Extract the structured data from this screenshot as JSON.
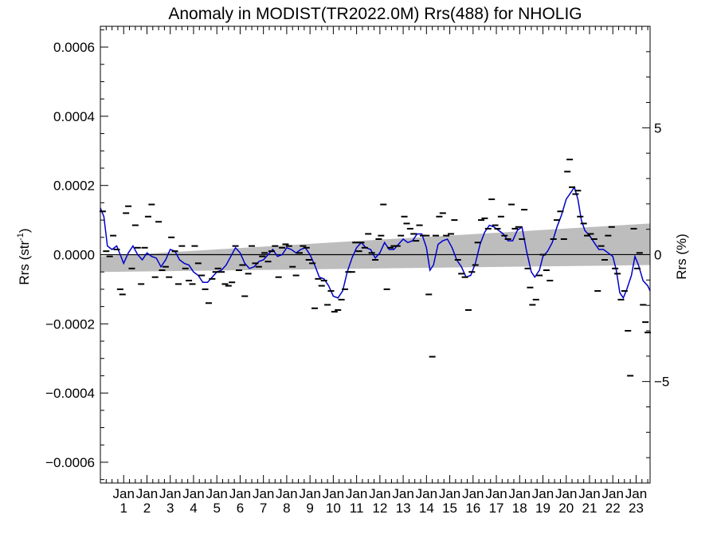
{
  "chart_data": {
    "type": "scatter",
    "title": "Anomaly in MODIST(TR2022.0M) Rrs(488) for NHOLIG",
    "ylabel": {
      "main": "Rrs (str",
      "sup": "-1",
      "close": ")"
    },
    "y2label": "Rrs (%)",
    "xlim": [
      0,
      23.6
    ],
    "ylim": [
      -0.00066,
      0.00066
    ],
    "y2lim": [
      -9.0,
      9.0
    ],
    "x_ticks": [
      {
        "top": "Jan",
        "bottom": "1",
        "x": 1
      },
      {
        "top": "Jan",
        "bottom": "2",
        "x": 2
      },
      {
        "top": "Jan",
        "bottom": "3",
        "x": 3
      },
      {
        "top": "Jan",
        "bottom": "4",
        "x": 4
      },
      {
        "top": "Jan",
        "bottom": "5",
        "x": 5
      },
      {
        "top": "Jan",
        "bottom": "6",
        "x": 6
      },
      {
        "top": "Jan",
        "bottom": "7",
        "x": 7
      },
      {
        "top": "Jan",
        "bottom": "8",
        "x": 8
      },
      {
        "top": "Jan",
        "bottom": "9",
        "x": 9
      },
      {
        "top": "Jan",
        "bottom": "10",
        "x": 10
      },
      {
        "top": "Jan",
        "bottom": "11",
        "x": 11
      },
      {
        "top": "Jan",
        "bottom": "12",
        "x": 12
      },
      {
        "top": "Jan",
        "bottom": "13",
        "x": 13
      },
      {
        "top": "Jan",
        "bottom": "14",
        "x": 14
      },
      {
        "top": "Jan",
        "bottom": "15",
        "x": 15
      },
      {
        "top": "Jan",
        "bottom": "16",
        "x": 16
      },
      {
        "top": "Jan",
        "bottom": "17",
        "x": 17
      },
      {
        "top": "Jan",
        "bottom": "18",
        "x": 18
      },
      {
        "top": "Jan",
        "bottom": "19",
        "x": 19
      },
      {
        "top": "Jan",
        "bottom": "20",
        "x": 20
      },
      {
        "top": "Jan",
        "bottom": "21",
        "x": 21
      },
      {
        "top": "Jan",
        "bottom": "22",
        "x": 22
      },
      {
        "top": "Jan",
        "bottom": "23",
        "x": 23
      }
    ],
    "y_ticks": [
      {
        "v": 0.0006,
        "label": "0.0006"
      },
      {
        "v": 0.0004,
        "label": "0.0004"
      },
      {
        "v": 0.0002,
        "label": "0.0002"
      },
      {
        "v": 0.0,
        "label": "0.0000"
      },
      {
        "v": -0.0002,
        "label": "−0.0002"
      },
      {
        "v": -0.0004,
        "label": "−0.0004"
      },
      {
        "v": -0.0006,
        "label": "−0.0006"
      }
    ],
    "y2_ticks": [
      {
        "v": 5,
        "label": "5"
      },
      {
        "v": 0,
        "label": "0"
      },
      {
        "v": -5,
        "label": "−5"
      }
    ],
    "trend": {
      "start": [
        0,
        -1e-07
      ],
      "end": [
        23.6,
        2e-07
      ]
    },
    "confidence_band": {
      "upper": [
        [
          0,
          -5e-06
        ],
        [
          23.6,
          9e-05
        ]
      ],
      "lower": [
        [
          0,
          -5e-05
        ],
        [
          23.6,
          -3e-05
        ]
      ]
    },
    "colors": {
      "smooth_line": "#0000cc",
      "band": "#bdbdbd",
      "points": "#000000",
      "trend": "#000000"
    },
    "points": [
      [
        0.1,
        0.000125
      ],
      [
        0.25,
        1e-05
      ],
      [
        0.4,
        -5e-06
      ],
      [
        0.55,
        5.5e-05
      ],
      [
        0.7,
        1.5e-05
      ],
      [
        0.85,
        -0.0001
      ],
      [
        0.95,
        -0.000115
      ],
      [
        1.1,
        0.00012
      ],
      [
        1.2,
        0.00014
      ],
      [
        1.35,
        -4e-05
      ],
      [
        1.5,
        8.5e-05
      ],
      [
        1.6,
        2e-05
      ],
      [
        1.75,
        -8.5e-05
      ],
      [
        1.9,
        2e-05
      ],
      [
        2.05,
        0.00011
      ],
      [
        2.2,
        0.000145
      ],
      [
        2.35,
        -6.5e-05
      ],
      [
        2.5,
        9.5e-05
      ],
      [
        2.65,
        -4.5e-05
      ],
      [
        2.8,
        -3.5e-05
      ],
      [
        2.95,
        -6.5e-05
      ],
      [
        3.05,
        5e-05
      ],
      [
        3.2,
        1e-05
      ],
      [
        3.35,
        -8.5e-05
      ],
      [
        3.5,
        2.5e-05
      ],
      [
        3.65,
        -4e-05
      ],
      [
        3.8,
        -7.5e-05
      ],
      [
        3.95,
        -8.5e-05
      ],
      [
        4.05,
        2.5e-05
      ],
      [
        4.2,
        -2.5e-05
      ],
      [
        4.35,
        -6e-05
      ],
      [
        4.5,
        -0.0001
      ],
      [
        4.65,
        -0.00014
      ],
      [
        4.8,
        -7e-05
      ],
      [
        4.95,
        -5e-05
      ],
      [
        5.05,
        -4e-05
      ],
      [
        5.2,
        -5e-05
      ],
      [
        5.35,
        -8.5e-05
      ],
      [
        5.5,
        -9e-05
      ],
      [
        5.65,
        -8e-05
      ],
      [
        5.8,
        2.5e-05
      ],
      [
        5.95,
        -4.5e-05
      ],
      [
        6.1,
        -3e-05
      ],
      [
        6.2,
        -0.00012
      ],
      [
        6.35,
        -5.5e-05
      ],
      [
        6.5,
        2.5e-05
      ],
      [
        6.65,
        -2.5e-05
      ],
      [
        6.8,
        -3.5e-05
      ],
      [
        6.95,
        -5e-06
      ],
      [
        7.05,
        5e-06
      ],
      [
        7.2,
        -2e-05
      ],
      [
        7.35,
        1e-05
      ],
      [
        7.5,
        2.5e-05
      ],
      [
        7.65,
        -6.5e-05
      ],
      [
        7.8,
        2e-05
      ],
      [
        7.95,
        3e-05
      ],
      [
        8.1,
        2.5e-05
      ],
      [
        8.25,
        -3.5e-05
      ],
      [
        8.4,
        -6e-05
      ],
      [
        8.55,
        5e-06
      ],
      [
        8.7,
        2.5e-05
      ],
      [
        8.85,
        2e-05
      ],
      [
        8.95,
        -1.5e-05
      ],
      [
        9.1,
        -2.5e-05
      ],
      [
        9.2,
        -0.000155
      ],
      [
        9.35,
        -7e-05
      ],
      [
        9.5,
        -9e-05
      ],
      [
        9.6,
        -7.5e-05
      ],
      [
        9.75,
        -0.000145
      ],
      [
        9.9,
        -0.000105
      ],
      [
        10.05,
        -0.000165
      ],
      [
        10.2,
        -0.00016
      ],
      [
        10.35,
        -0.00013
      ],
      [
        10.5,
        -0.0001
      ],
      [
        10.65,
        -5e-05
      ],
      [
        10.8,
        -5e-05
      ],
      [
        10.95,
        3.5e-05
      ],
      [
        11.1,
        1e-05
      ],
      [
        11.2,
        3.5e-05
      ],
      [
        11.35,
        2e-05
      ],
      [
        11.5,
        6e-05
      ],
      [
        11.65,
        5e-06
      ],
      [
        11.8,
        -1.5e-05
      ],
      [
        11.95,
        4.5e-05
      ],
      [
        12.05,
        5.5e-05
      ],
      [
        12.15,
        0.000145
      ],
      [
        12.3,
        -0.0001
      ],
      [
        12.45,
        2e-05
      ],
      [
        12.6,
        2.5e-05
      ],
      [
        12.75,
        2.5e-05
      ],
      [
        12.9,
        5.5e-05
      ],
      [
        13.05,
        0.00011
      ],
      [
        13.15,
        9e-05
      ],
      [
        13.3,
        7.5e-05
      ],
      [
        13.45,
        6e-05
      ],
      [
        13.55,
        4e-05
      ],
      [
        13.7,
        8.5e-05
      ],
      [
        13.85,
        5.5e-05
      ],
      [
        14.0,
        5.5e-05
      ],
      [
        14.1,
        -0.000115
      ],
      [
        14.25,
        -0.000295
      ],
      [
        14.4,
        5.5e-05
      ],
      [
        14.55,
        0.00011
      ],
      [
        14.7,
        0.00012
      ],
      [
        14.85,
        5.5e-05
      ],
      [
        15.05,
        6e-05
      ],
      [
        15.2,
        0.0001
      ],
      [
        15.35,
        -1.5e-05
      ],
      [
        15.5,
        -5.5e-05
      ],
      [
        15.65,
        -6.5e-05
      ],
      [
        15.8,
        -0.00016
      ],
      [
        15.95,
        -5e-05
      ],
      [
        16.1,
        -3e-05
      ],
      [
        16.2,
        3.5e-05
      ],
      [
        16.35,
        0.0001
      ],
      [
        16.5,
        0.000105
      ],
      [
        16.65,
        7.5e-05
      ],
      [
        16.8,
        0.00016
      ],
      [
        16.95,
        8.5e-05
      ],
      [
        17.05,
        7.5e-05
      ],
      [
        17.2,
        0.00011
      ],
      [
        17.35,
        5.5e-05
      ],
      [
        17.5,
        4.5e-05
      ],
      [
        17.65,
        0.000145
      ],
      [
        17.8,
        7.5e-05
      ],
      [
        17.95,
        8e-05
      ],
      [
        18.1,
        4.5e-05
      ],
      [
        18.2,
        0.00013
      ],
      [
        18.35,
        -4e-05
      ],
      [
        18.45,
        -9.5e-05
      ],
      [
        18.55,
        -0.000145
      ],
      [
        18.7,
        -0.00013
      ],
      [
        18.85,
        -6e-05
      ],
      [
        19.0,
        0.0
      ],
      [
        19.15,
        -4.5e-05
      ],
      [
        19.3,
        -7.5e-05
      ],
      [
        19.45,
        4.5e-05
      ],
      [
        19.6,
        0.0001
      ],
      [
        19.75,
        0.000125
      ],
      [
        19.9,
        4.5e-05
      ],
      [
        20.05,
        0.00024
      ],
      [
        20.15,
        0.000275
      ],
      [
        20.25,
        0.000195
      ],
      [
        20.4,
        0.000175
      ],
      [
        20.5,
        0.000185
      ],
      [
        20.6,
        0.00011
      ],
      [
        20.75,
        9e-05
      ],
      [
        20.9,
        5.5e-05
      ],
      [
        21.05,
        6e-05
      ],
      [
        21.2,
        4.5e-05
      ],
      [
        21.35,
        -0.000105
      ],
      [
        21.5,
        2.5e-05
      ],
      [
        21.65,
        -1.5e-05
      ],
      [
        21.8,
        5.5e-05
      ],
      [
        21.95,
        8e-05
      ],
      [
        22.1,
        -4e-05
      ],
      [
        22.2,
        -5.5e-05
      ],
      [
        22.35,
        -0.00013
      ],
      [
        22.5,
        -0.000105
      ],
      [
        22.65,
        -0.00022
      ],
      [
        22.75,
        -0.00035
      ],
      [
        22.9,
        7.5e-05
      ],
      [
        23.05,
        -4e-05
      ],
      [
        23.15,
        5e-06
      ],
      [
        23.3,
        -0.000145
      ],
      [
        23.4,
        -0.000195
      ],
      [
        23.5,
        -0.000225
      ]
    ],
    "smooth_series": [
      [
        0.0,
        0.000135
      ],
      [
        0.15,
        0.00011
      ],
      [
        0.3,
        2.5e-05
      ],
      [
        0.5,
        1.5e-05
      ],
      [
        0.7,
        2.5e-05
      ],
      [
        0.85,
        0.0
      ],
      [
        1.0,
        -2.5e-05
      ],
      [
        1.2,
        5e-06
      ],
      [
        1.4,
        2.5e-05
      ],
      [
        1.6,
        0.0
      ],
      [
        1.8,
        -1.5e-05
      ],
      [
        2.0,
        5e-06
      ],
      [
        2.2,
        -5e-06
      ],
      [
        2.4,
        -1e-05
      ],
      [
        2.6,
        -3.5e-05
      ],
      [
        2.8,
        -1.5e-05
      ],
      [
        3.0,
        1.5e-05
      ],
      [
        3.2,
        1e-05
      ],
      [
        3.4,
        -1.5e-05
      ],
      [
        3.6,
        -2.5e-05
      ],
      [
        3.8,
        -3e-05
      ],
      [
        4.0,
        -5e-05
      ],
      [
        4.2,
        -6e-05
      ],
      [
        4.4,
        -8e-05
      ],
      [
        4.6,
        -8e-05
      ],
      [
        4.8,
        -6.5e-05
      ],
      [
        5.0,
        -5e-05
      ],
      [
        5.2,
        -4.5e-05
      ],
      [
        5.4,
        -3e-05
      ],
      [
        5.6,
        -5e-06
      ],
      [
        5.8,
        2e-05
      ],
      [
        6.0,
        5e-06
      ],
      [
        6.2,
        -2.5e-05
      ],
      [
        6.4,
        -4e-05
      ],
      [
        6.6,
        -3.5e-05
      ],
      [
        6.8,
        -2e-05
      ],
      [
        7.0,
        -1.5e-05
      ],
      [
        7.2,
        0.0
      ],
      [
        7.4,
        1.5e-05
      ],
      [
        7.6,
        -5e-06
      ],
      [
        7.8,
        0.0
      ],
      [
        8.0,
        2e-05
      ],
      [
        8.2,
        1.5e-05
      ],
      [
        8.4,
        5e-06
      ],
      [
        8.6,
        1.5e-05
      ],
      [
        8.8,
        2e-05
      ],
      [
        9.0,
        0.0
      ],
      [
        9.2,
        -3e-05
      ],
      [
        9.4,
        -6.5e-05
      ],
      [
        9.6,
        -7e-05
      ],
      [
        9.8,
        -9e-05
      ],
      [
        10.0,
        -0.00012
      ],
      [
        10.2,
        -0.000125
      ],
      [
        10.4,
        -0.000105
      ],
      [
        10.6,
        -5e-05
      ],
      [
        10.8,
        -1e-05
      ],
      [
        11.0,
        2e-05
      ],
      [
        11.2,
        3.5e-05
      ],
      [
        11.4,
        2e-05
      ],
      [
        11.6,
        1.5e-05
      ],
      [
        11.8,
        -1e-05
      ],
      [
        12.0,
        5e-06
      ],
      [
        12.2,
        3.5e-05
      ],
      [
        12.4,
        1.5e-05
      ],
      [
        12.6,
        1.5e-05
      ],
      [
        12.8,
        3e-05
      ],
      [
        13.0,
        4.5e-05
      ],
      [
        13.2,
        3.5e-05
      ],
      [
        13.4,
        4e-05
      ],
      [
        13.6,
        6e-05
      ],
      [
        13.8,
        6e-05
      ],
      [
        14.0,
        2e-05
      ],
      [
        14.15,
        -4.5e-05
      ],
      [
        14.3,
        -3e-05
      ],
      [
        14.5,
        3e-05
      ],
      [
        14.7,
        4e-05
      ],
      [
        14.9,
        4.5e-05
      ],
      [
        15.1,
        2e-05
      ],
      [
        15.3,
        -1.5e-05
      ],
      [
        15.5,
        -3.5e-05
      ],
      [
        15.7,
        -6.5e-05
      ],
      [
        15.9,
        -6e-05
      ],
      [
        16.1,
        -2.5e-05
      ],
      [
        16.3,
        3e-05
      ],
      [
        16.5,
        6.5e-05
      ],
      [
        16.7,
        8.5e-05
      ],
      [
        16.9,
        8e-05
      ],
      [
        17.1,
        7e-05
      ],
      [
        17.3,
        6e-05
      ],
      [
        17.5,
        4e-05
      ],
      [
        17.7,
        4e-05
      ],
      [
        17.9,
        7e-05
      ],
      [
        18.1,
        8e-05
      ],
      [
        18.3,
        1e-05
      ],
      [
        18.5,
        -5e-05
      ],
      [
        18.65,
        -6.5e-05
      ],
      [
        18.85,
        -4.5e-05
      ],
      [
        19.0,
        -5e-06
      ],
      [
        19.2,
        1e-05
      ],
      [
        19.4,
        3.5e-05
      ],
      [
        19.6,
        8e-05
      ],
      [
        19.8,
        0.000115
      ],
      [
        20.0,
        0.00016
      ],
      [
        20.2,
        0.00018
      ],
      [
        20.35,
        0.000195
      ],
      [
        20.5,
        0.00016
      ],
      [
        20.65,
        0.0001
      ],
      [
        20.8,
        7e-05
      ],
      [
        21.0,
        5.5e-05
      ],
      [
        21.2,
        3.5e-05
      ],
      [
        21.4,
        1.5e-05
      ],
      [
        21.6,
        1.5e-05
      ],
      [
        21.8,
        5e-06
      ],
      [
        22.0,
        -5e-06
      ],
      [
        22.15,
        -4.5e-05
      ],
      [
        22.3,
        -0.00011
      ],
      [
        22.45,
        -0.000125
      ],
      [
        22.6,
        -0.0001
      ],
      [
        22.8,
        -6e-05
      ],
      [
        22.95,
        -5e-06
      ],
      [
        23.1,
        -3e-05
      ],
      [
        23.3,
        -7.5e-05
      ],
      [
        23.5,
        -9e-05
      ],
      [
        23.6,
        -0.000105
      ]
    ]
  }
}
